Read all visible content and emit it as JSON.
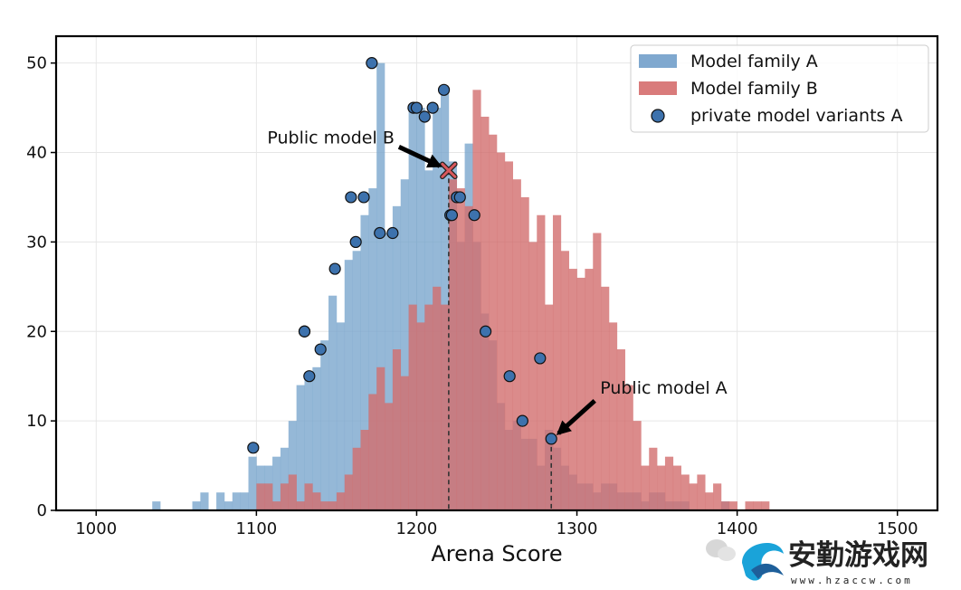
{
  "chart_data": {
    "type": "bar",
    "xlabel": "Arena Score",
    "ylabel": "",
    "xlim": [
      975,
      1525
    ],
    "ylim": [
      0,
      53
    ],
    "bin_width": 5,
    "grid": true,
    "legend_placement": "top-right",
    "x_ticks": [
      "1000",
      "1100",
      "1200",
      "1300",
      "1400",
      "1500"
    ],
    "x_tick_values": [
      1000,
      1100,
      1200,
      1300,
      1400,
      1500
    ],
    "y_ticks": [
      "0",
      "10",
      "20",
      "30",
      "40",
      "50"
    ],
    "y_tick_values": [
      0,
      10,
      20,
      30,
      40,
      50
    ],
    "colors": {
      "family_a": "#7fa8cf",
      "family_b": "#d97b7b",
      "marker": "#3d72ad",
      "marker_edge": "#111111",
      "public_b_marker": "#d9585c"
    },
    "legend": [
      {
        "label": "Model family A",
        "kind": "patch",
        "color": "#7fa8cf"
      },
      {
        "label": "Model family B",
        "kind": "patch",
        "color": "#d97b7b"
      },
      {
        "label": "private model variants A",
        "kind": "marker",
        "color": "#3d72ad"
      }
    ],
    "series": [
      {
        "name": "Model family A",
        "bins": [
          [
            1035,
            1
          ],
          [
            1060,
            1
          ],
          [
            1065,
            2
          ],
          [
            1075,
            2
          ],
          [
            1080,
            1
          ],
          [
            1085,
            2
          ],
          [
            1090,
            2
          ],
          [
            1095,
            6
          ],
          [
            1100,
            5
          ],
          [
            1105,
            5
          ],
          [
            1110,
            6
          ],
          [
            1115,
            7
          ],
          [
            1120,
            10
          ],
          [
            1125,
            14
          ],
          [
            1130,
            15
          ],
          [
            1135,
            16
          ],
          [
            1140,
            19
          ],
          [
            1145,
            24
          ],
          [
            1150,
            21
          ],
          [
            1155,
            28
          ],
          [
            1160,
            29
          ],
          [
            1165,
            33
          ],
          [
            1170,
            36
          ],
          [
            1175,
            50
          ],
          [
            1180,
            31
          ],
          [
            1185,
            34
          ],
          [
            1190,
            37
          ],
          [
            1195,
            45
          ],
          [
            1200,
            45
          ],
          [
            1205,
            38
          ],
          [
            1210,
            45
          ],
          [
            1215,
            47
          ],
          [
            1220,
            39
          ],
          [
            1225,
            30
          ],
          [
            1230,
            41
          ],
          [
            1235,
            30
          ],
          [
            1240,
            22
          ],
          [
            1245,
            19
          ],
          [
            1250,
            12
          ],
          [
            1255,
            9
          ],
          [
            1260,
            10
          ],
          [
            1265,
            8
          ],
          [
            1270,
            8
          ],
          [
            1275,
            5
          ],
          [
            1280,
            9
          ],
          [
            1285,
            7
          ],
          [
            1290,
            5
          ],
          [
            1295,
            4
          ],
          [
            1300,
            3
          ],
          [
            1305,
            3
          ],
          [
            1310,
            2
          ],
          [
            1315,
            3
          ],
          [
            1320,
            3
          ],
          [
            1325,
            2
          ],
          [
            1330,
            2
          ],
          [
            1335,
            2
          ],
          [
            1340,
            1
          ],
          [
            1345,
            2
          ],
          [
            1350,
            2
          ],
          [
            1355,
            1
          ],
          [
            1360,
            1
          ],
          [
            1365,
            1
          ],
          [
            1390,
            1
          ]
        ]
      },
      {
        "name": "Model family B",
        "bins": [
          [
            1100,
            3
          ],
          [
            1105,
            3
          ],
          [
            1110,
            1
          ],
          [
            1115,
            3
          ],
          [
            1120,
            4
          ],
          [
            1125,
            1
          ],
          [
            1130,
            3
          ],
          [
            1135,
            2
          ],
          [
            1140,
            1
          ],
          [
            1145,
            1
          ],
          [
            1150,
            2
          ],
          [
            1155,
            4
          ],
          [
            1160,
            7
          ],
          [
            1165,
            9
          ],
          [
            1170,
            13
          ],
          [
            1175,
            16
          ],
          [
            1180,
            12
          ],
          [
            1185,
            18
          ],
          [
            1190,
            15
          ],
          [
            1195,
            23
          ],
          [
            1200,
            21
          ],
          [
            1205,
            23
          ],
          [
            1210,
            25
          ],
          [
            1215,
            23
          ],
          [
            1220,
            37
          ],
          [
            1225,
            36
          ],
          [
            1230,
            34
          ],
          [
            1235,
            47
          ],
          [
            1240,
            44
          ],
          [
            1245,
            42
          ],
          [
            1250,
            40
          ],
          [
            1255,
            39
          ],
          [
            1260,
            37
          ],
          [
            1265,
            35
          ],
          [
            1270,
            30
          ],
          [
            1275,
            33
          ],
          [
            1280,
            23
          ],
          [
            1285,
            33
          ],
          [
            1290,
            29
          ],
          [
            1295,
            27
          ],
          [
            1300,
            26
          ],
          [
            1305,
            27
          ],
          [
            1310,
            31
          ],
          [
            1315,
            25
          ],
          [
            1320,
            21
          ],
          [
            1325,
            18
          ],
          [
            1330,
            14
          ],
          [
            1335,
            10
          ],
          [
            1340,
            5
          ],
          [
            1345,
            7
          ],
          [
            1350,
            5
          ],
          [
            1355,
            6
          ],
          [
            1360,
            5
          ],
          [
            1365,
            4
          ],
          [
            1370,
            3
          ],
          [
            1375,
            4
          ],
          [
            1380,
            2
          ],
          [
            1385,
            3
          ],
          [
            1390,
            1
          ],
          [
            1395,
            1
          ],
          [
            1400,
            0
          ],
          [
            1405,
            1
          ],
          [
            1410,
            1
          ],
          [
            1415,
            1
          ]
        ]
      }
    ],
    "private_model_variants_a": [
      [
        1098,
        7
      ],
      [
        1130,
        20
      ],
      [
        1133,
        15
      ],
      [
        1130,
        20
      ],
      [
        1140,
        18
      ],
      [
        1149,
        27
      ],
      [
        1159,
        35
      ],
      [
        1162,
        30
      ],
      [
        1167,
        35
      ],
      [
        1172,
        50
      ],
      [
        1177,
        31
      ],
      [
        1185,
        31
      ],
      [
        1198,
        45
      ],
      [
        1200,
        45
      ],
      [
        1205,
        44
      ],
      [
        1210,
        45
      ],
      [
        1217,
        47
      ],
      [
        1221,
        33
      ],
      [
        1222,
        33
      ],
      [
        1225,
        35
      ],
      [
        1227,
        35
      ],
      [
        1236,
        33
      ],
      [
        1243,
        20
      ],
      [
        1258,
        15
      ],
      [
        1266,
        10
      ],
      [
        1277,
        17
      ],
      [
        1284,
        8
      ]
    ],
    "annotations": [
      {
        "text": "Public model B",
        "x": 1220,
        "y": 38,
        "marker": "x"
      },
      {
        "text": "Public model A",
        "x": 1284,
        "y": 8,
        "marker": "o"
      }
    ]
  },
  "watermark": {
    "text": "安勤游戏网",
    "url": "www.hzaccw.com",
    "color": "#1aa3d9"
  }
}
